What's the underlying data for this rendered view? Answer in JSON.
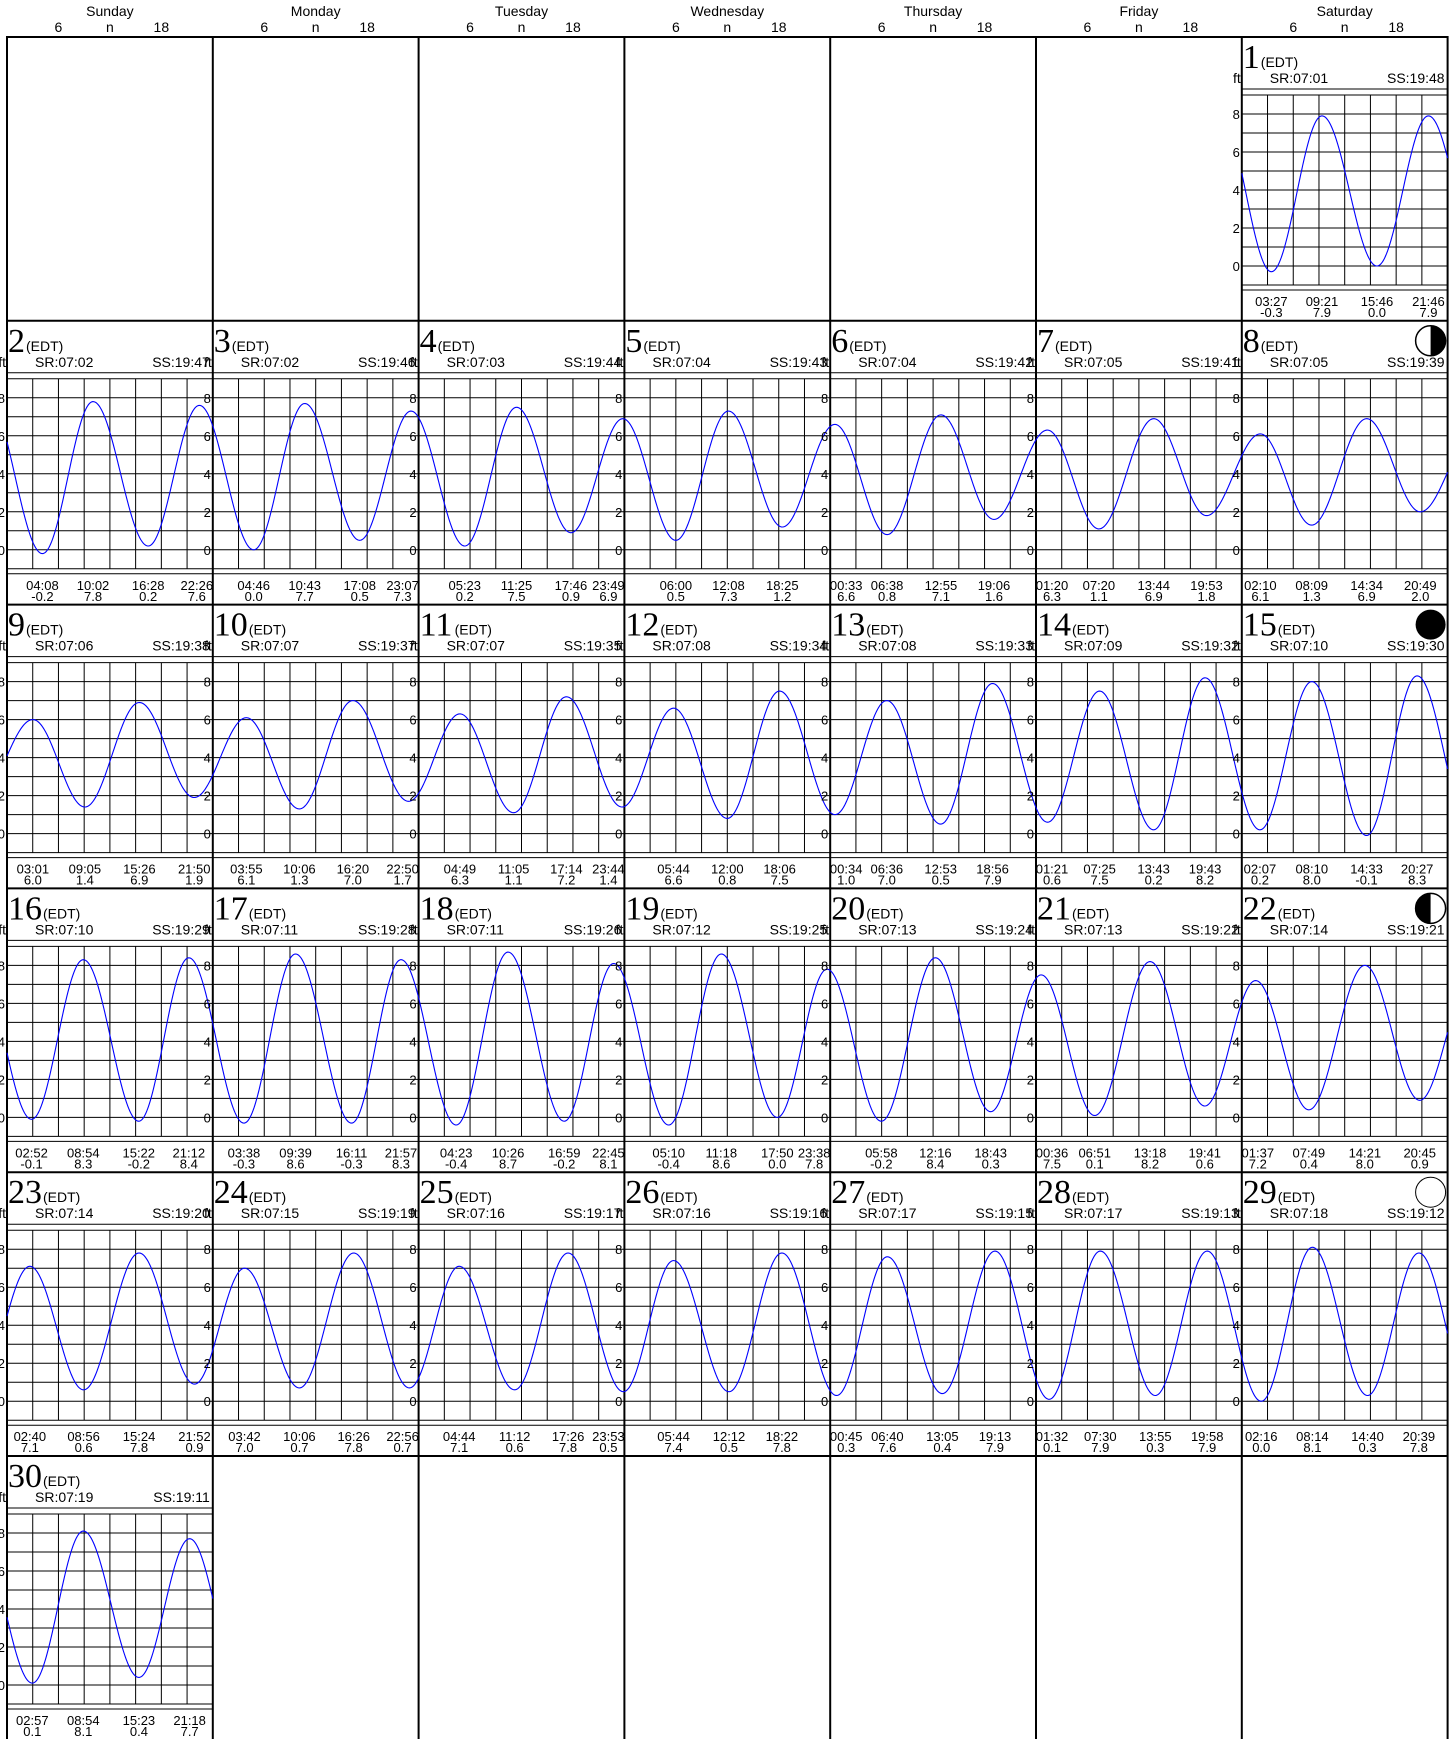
{
  "week_days": [
    "Sunday",
    "Monday",
    "Tuesday",
    "Wednesday",
    "Thursday",
    "Friday",
    "Saturday"
  ],
  "hour_labels": [
    "6",
    "n",
    "18"
  ],
  "units": "ft",
  "y_ticks": [
    "0",
    "2",
    "4",
    "6",
    "8"
  ],
  "chart_data": {
    "type": "line",
    "title": "",
    "ylabel": "ft",
    "ylim": [
      -1,
      9
    ],
    "timezone": "EDT",
    "days": [
      {
        "day": 1,
        "col": 6,
        "row": 0,
        "sr": "SR:07:01",
        "ss": "SS:19:48",
        "moon": "",
        "extrema": [
          {
            "time": "03:27",
            "height": "-0.3"
          },
          {
            "time": "09:21",
            "height": "7.9"
          },
          {
            "time": "15:46",
            "height": "0.0"
          },
          {
            "time": "21:46",
            "height": "7.9"
          }
        ]
      },
      {
        "day": 2,
        "col": 0,
        "row": 1,
        "sr": "SR:07:02",
        "ss": "SS:19:47",
        "moon": "",
        "extrema": [
          {
            "time": "04:08",
            "height": "-0.2"
          },
          {
            "time": "10:02",
            "height": "7.8"
          },
          {
            "time": "16:28",
            "height": "0.2"
          },
          {
            "time": "22:26",
            "height": "7.6"
          }
        ]
      },
      {
        "day": 3,
        "col": 1,
        "row": 1,
        "sr": "SR:07:02",
        "ss": "SS:19:46",
        "moon": "",
        "extrema": [
          {
            "time": "04:46",
            "height": "0.0"
          },
          {
            "time": "10:43",
            "height": "7.7"
          },
          {
            "time": "17:08",
            "height": "0.5"
          },
          {
            "time": "23:07",
            "height": "7.3"
          }
        ]
      },
      {
        "day": 4,
        "col": 2,
        "row": 1,
        "sr": "SR:07:03",
        "ss": "SS:19:44",
        "moon": "",
        "extrema": [
          {
            "time": "05:23",
            "height": "0.2"
          },
          {
            "time": "11:25",
            "height": "7.5"
          },
          {
            "time": "17:46",
            "height": "0.9"
          },
          {
            "time": "23:49",
            "height": "6.9"
          }
        ]
      },
      {
        "day": 5,
        "col": 3,
        "row": 1,
        "sr": "SR:07:04",
        "ss": "SS:19:43",
        "moon": "",
        "extrema": [
          {
            "time": "06:00",
            "height": "0.5"
          },
          {
            "time": "12:08",
            "height": "7.3"
          },
          {
            "time": "18:25",
            "height": "1.2"
          }
        ]
      },
      {
        "day": 6,
        "col": 4,
        "row": 1,
        "sr": "SR:07:04",
        "ss": "SS:19:42",
        "moon": "",
        "extrema": [
          {
            "time": "00:33",
            "height": "6.6"
          },
          {
            "time": "06:38",
            "height": "0.8"
          },
          {
            "time": "12:55",
            "height": "7.1"
          },
          {
            "time": "19:06",
            "height": "1.6"
          }
        ]
      },
      {
        "day": 7,
        "col": 5,
        "row": 1,
        "sr": "SR:07:05",
        "ss": "SS:19:41",
        "moon": "",
        "extrema": [
          {
            "time": "01:20",
            "height": "6.3"
          },
          {
            "time": "07:20",
            "height": "1.1"
          },
          {
            "time": "13:44",
            "height": "6.9"
          },
          {
            "time": "19:53",
            "height": "1.8"
          }
        ]
      },
      {
        "day": 8,
        "col": 6,
        "row": 1,
        "sr": "SR:07:05",
        "ss": "SS:19:39",
        "moon": "first-quarter",
        "extrema": [
          {
            "time": "02:10",
            "height": "6.1"
          },
          {
            "time": "08:09",
            "height": "1.3"
          },
          {
            "time": "14:34",
            "height": "6.9"
          },
          {
            "time": "20:49",
            "height": "2.0"
          }
        ]
      },
      {
        "day": 9,
        "col": 0,
        "row": 2,
        "sr": "SR:07:06",
        "ss": "SS:19:38",
        "moon": "",
        "extrema": [
          {
            "time": "03:01",
            "height": "6.0"
          },
          {
            "time": "09:05",
            "height": "1.4"
          },
          {
            "time": "15:26",
            "height": "6.9"
          },
          {
            "time": "21:50",
            "height": "1.9"
          }
        ]
      },
      {
        "day": 10,
        "col": 1,
        "row": 2,
        "sr": "SR:07:07",
        "ss": "SS:19:37",
        "moon": "",
        "extrema": [
          {
            "time": "03:55",
            "height": "6.1"
          },
          {
            "time": "10:06",
            "height": "1.3"
          },
          {
            "time": "16:20",
            "height": "7.0"
          },
          {
            "time": "22:50",
            "height": "1.7"
          }
        ]
      },
      {
        "day": 11,
        "col": 2,
        "row": 2,
        "sr": "SR:07:07",
        "ss": "SS:19:35",
        "moon": "",
        "extrema": [
          {
            "time": "04:49",
            "height": "6.3"
          },
          {
            "time": "11:05",
            "height": "1.1"
          },
          {
            "time": "17:14",
            "height": "7.2"
          },
          {
            "time": "23:44",
            "height": "1.4"
          }
        ]
      },
      {
        "day": 12,
        "col": 3,
        "row": 2,
        "sr": "SR:07:08",
        "ss": "SS:19:34",
        "moon": "",
        "extrema": [
          {
            "time": "05:44",
            "height": "6.6"
          },
          {
            "time": "12:00",
            "height": "0.8"
          },
          {
            "time": "18:06",
            "height": "7.5"
          }
        ]
      },
      {
        "day": 13,
        "col": 4,
        "row": 2,
        "sr": "SR:07:08",
        "ss": "SS:19:33",
        "moon": "",
        "extrema": [
          {
            "time": "00:34",
            "height": "1.0"
          },
          {
            "time": "06:36",
            "height": "7.0"
          },
          {
            "time": "12:53",
            "height": "0.5"
          },
          {
            "time": "18:56",
            "height": "7.9"
          }
        ]
      },
      {
        "day": 14,
        "col": 5,
        "row": 2,
        "sr": "SR:07:09",
        "ss": "SS:19:32",
        "moon": "",
        "extrema": [
          {
            "time": "01:21",
            "height": "0.6"
          },
          {
            "time": "07:25",
            "height": "7.5"
          },
          {
            "time": "13:43",
            "height": "0.2"
          },
          {
            "time": "19:43",
            "height": "8.2"
          }
        ]
      },
      {
        "day": 15,
        "col": 6,
        "row": 2,
        "sr": "SR:07:10",
        "ss": "SS:19:30",
        "moon": "new",
        "extrema": [
          {
            "time": "02:07",
            "height": "0.2"
          },
          {
            "time": "08:10",
            "height": "8.0"
          },
          {
            "time": "14:33",
            "height": "-0.1"
          },
          {
            "time": "20:27",
            "height": "8.3"
          }
        ]
      },
      {
        "day": 16,
        "col": 0,
        "row": 3,
        "sr": "SR:07:10",
        "ss": "SS:19:29",
        "moon": "",
        "extrema": [
          {
            "time": "02:52",
            "height": "-0.1"
          },
          {
            "time": "08:54",
            "height": "8.3"
          },
          {
            "time": "15:22",
            "height": "-0.2"
          },
          {
            "time": "21:12",
            "height": "8.4"
          }
        ]
      },
      {
        "day": 17,
        "col": 1,
        "row": 3,
        "sr": "SR:07:11",
        "ss": "SS:19:28",
        "moon": "",
        "extrema": [
          {
            "time": "03:38",
            "height": "-0.3"
          },
          {
            "time": "09:39",
            "height": "8.6"
          },
          {
            "time": "16:11",
            "height": "-0.3"
          },
          {
            "time": "21:57",
            "height": "8.3"
          }
        ]
      },
      {
        "day": 18,
        "col": 2,
        "row": 3,
        "sr": "SR:07:11",
        "ss": "SS:19:26",
        "moon": "",
        "extrema": [
          {
            "time": "04:23",
            "height": "-0.4"
          },
          {
            "time": "10:26",
            "height": "8.7"
          },
          {
            "time": "16:59",
            "height": "-0.2"
          },
          {
            "time": "22:45",
            "height": "8.1"
          }
        ]
      },
      {
        "day": 19,
        "col": 3,
        "row": 3,
        "sr": "SR:07:12",
        "ss": "SS:19:25",
        "moon": "",
        "extrema": [
          {
            "time": "05:10",
            "height": "-0.4"
          },
          {
            "time": "11:18",
            "height": "8.6"
          },
          {
            "time": "17:50",
            "height": "0.0"
          },
          {
            "time": "23:38",
            "height": "7.8"
          }
        ]
      },
      {
        "day": 20,
        "col": 4,
        "row": 3,
        "sr": "SR:07:13",
        "ss": "SS:19:24",
        "moon": "",
        "extrema": [
          {
            "time": "05:58",
            "height": "-0.2"
          },
          {
            "time": "12:16",
            "height": "8.4"
          },
          {
            "time": "18:43",
            "height": "0.3"
          }
        ]
      },
      {
        "day": 21,
        "col": 5,
        "row": 3,
        "sr": "SR:07:13",
        "ss": "SS:19:22",
        "moon": "",
        "extrema": [
          {
            "time": "00:36",
            "height": "7.5"
          },
          {
            "time": "06:51",
            "height": "0.1"
          },
          {
            "time": "13:18",
            "height": "8.2"
          },
          {
            "time": "19:41",
            "height": "0.6"
          }
        ]
      },
      {
        "day": 22,
        "col": 6,
        "row": 3,
        "sr": "SR:07:14",
        "ss": "SS:19:21",
        "moon": "last-quarter",
        "extrema": [
          {
            "time": "01:37",
            "height": "7.2"
          },
          {
            "time": "07:49",
            "height": "0.4"
          },
          {
            "time": "14:21",
            "height": "8.0"
          },
          {
            "time": "20:45",
            "height": "0.9"
          }
        ]
      },
      {
        "day": 23,
        "col": 0,
        "row": 4,
        "sr": "SR:07:14",
        "ss": "SS:19:20",
        "moon": "",
        "extrema": [
          {
            "time": "02:40",
            "height": "7.1"
          },
          {
            "time": "08:56",
            "height": "0.6"
          },
          {
            "time": "15:24",
            "height": "7.8"
          },
          {
            "time": "21:52",
            "height": "0.9"
          }
        ]
      },
      {
        "day": 24,
        "col": 1,
        "row": 4,
        "sr": "SR:07:15",
        "ss": "SS:19:19",
        "moon": "",
        "extrema": [
          {
            "time": "03:42",
            "height": "7.0"
          },
          {
            "time": "10:06",
            "height": "0.7"
          },
          {
            "time": "16:26",
            "height": "7.8"
          },
          {
            "time": "22:56",
            "height": "0.7"
          }
        ]
      },
      {
        "day": 25,
        "col": 2,
        "row": 4,
        "sr": "SR:07:16",
        "ss": "SS:19:17",
        "moon": "",
        "extrema": [
          {
            "time": "04:44",
            "height": "7.1"
          },
          {
            "time": "11:12",
            "height": "0.6"
          },
          {
            "time": "17:26",
            "height": "7.8"
          },
          {
            "time": "23:53",
            "height": "0.5"
          }
        ]
      },
      {
        "day": 26,
        "col": 3,
        "row": 4,
        "sr": "SR:07:16",
        "ss": "SS:19:16",
        "moon": "",
        "extrema": [
          {
            "time": "05:44",
            "height": "7.4"
          },
          {
            "time": "12:12",
            "height": "0.5"
          },
          {
            "time": "18:22",
            "height": "7.8"
          }
        ]
      },
      {
        "day": 27,
        "col": 4,
        "row": 4,
        "sr": "SR:07:17",
        "ss": "SS:19:15",
        "moon": "",
        "extrema": [
          {
            "time": "00:45",
            "height": "0.3"
          },
          {
            "time": "06:40",
            "height": "7.6"
          },
          {
            "time": "13:05",
            "height": "0.4"
          },
          {
            "time": "19:13",
            "height": "7.9"
          }
        ]
      },
      {
        "day": 28,
        "col": 5,
        "row": 4,
        "sr": "SR:07:17",
        "ss": "SS:19:13",
        "moon": "",
        "extrema": [
          {
            "time": "01:32",
            "height": "0.1"
          },
          {
            "time": "07:30",
            "height": "7.9"
          },
          {
            "time": "13:55",
            "height": "0.3"
          },
          {
            "time": "19:58",
            "height": "7.9"
          }
        ]
      },
      {
        "day": 29,
        "col": 6,
        "row": 4,
        "sr": "SR:07:18",
        "ss": "SS:19:12",
        "moon": "full",
        "extrema": [
          {
            "time": "02:16",
            "height": "0.0"
          },
          {
            "time": "08:14",
            "height": "8.1"
          },
          {
            "time": "14:40",
            "height": "0.3"
          },
          {
            "time": "20:39",
            "height": "7.8"
          }
        ]
      },
      {
        "day": 30,
        "col": 0,
        "row": 5,
        "sr": "SR:07:19",
        "ss": "SS:19:11",
        "moon": "",
        "extrema": [
          {
            "time": "02:57",
            "height": "0.1"
          },
          {
            "time": "08:54",
            "height": "8.1"
          },
          {
            "time": "15:23",
            "height": "0.4"
          },
          {
            "time": "21:18",
            "height": "7.7"
          }
        ]
      }
    ]
  }
}
